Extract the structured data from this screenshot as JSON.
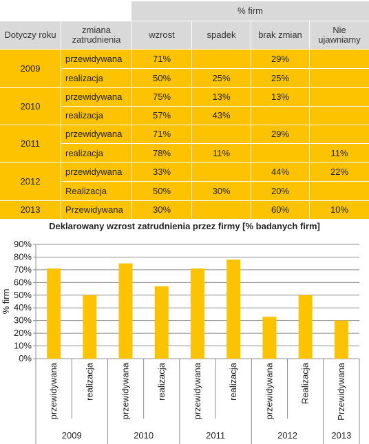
{
  "table": {
    "group_header": "% firm",
    "col_year": "Dotyczy roku",
    "col_change": "zmiana zatrudnienia",
    "col_growth": "wzrost",
    "col_decline": "spadek",
    "col_nochange": "brak zmian",
    "col_undisclosed": "Nie ujawniamy",
    "years": [
      {
        "year": "2009",
        "rows": [
          {
            "type": "przewidywana",
            "wzrost": "71%",
            "spadek": "",
            "brak": "29%",
            "nie": ""
          },
          {
            "type": "realizacja",
            "wzrost": "50%",
            "spadek": "25%",
            "brak": "25%",
            "nie": ""
          }
        ]
      },
      {
        "year": "2010",
        "rows": [
          {
            "type": "przewidywana",
            "wzrost": "75%",
            "spadek": "13%",
            "brak": "13%",
            "nie": ""
          },
          {
            "type": "realizacja",
            "wzrost": "57%",
            "spadek": "43%",
            "brak": "",
            "nie": ""
          }
        ]
      },
      {
        "year": "2011",
        "rows": [
          {
            "type": "przewidywana",
            "wzrost": "71%",
            "spadek": "",
            "brak": "29%",
            "nie": ""
          },
          {
            "type": "realizacja",
            "wzrost": "78%",
            "spadek": "11%",
            "brak": "",
            "nie": "11%"
          }
        ]
      },
      {
        "year": "2012",
        "rows": [
          {
            "type": "przewidywana",
            "wzrost": "33%",
            "spadek": "",
            "brak": "44%",
            "nie": "22%"
          },
          {
            "type": "Realizacja",
            "wzrost": "50%",
            "spadek": "30%",
            "brak": "20%",
            "nie": ""
          }
        ]
      },
      {
        "year": "2013",
        "rows": [
          {
            "type": "Przewidywana",
            "wzrost": "30%",
            "spadek": "",
            "brak": "60%",
            "nie": "10%"
          }
        ]
      }
    ]
  },
  "chart_data": {
    "type": "bar",
    "title": "Deklarowany  wzrost  zatrudnienia  przez  firmy  [% badanych firm]",
    "ylabel": "% firm",
    "xlabel": "",
    "ylim": [
      0,
      90
    ],
    "yticks": [
      "0%",
      "10%",
      "20%",
      "30%",
      "40%",
      "50%",
      "60%",
      "70%",
      "80%",
      "90%"
    ],
    "grid": true,
    "bar_color": "#fdc300",
    "categories": [
      "przewidywana",
      "realizacja",
      "przewidywana",
      "realizacja",
      "przewidywana",
      "realizacja",
      "przewidywana",
      "Realizacja",
      "Przewidywana"
    ],
    "groups": [
      {
        "label": "2009",
        "count": 2
      },
      {
        "label": "2010",
        "count": 2
      },
      {
        "label": "2011",
        "count": 2
      },
      {
        "label": "2012",
        "count": 2
      },
      {
        "label": "2013",
        "count": 1
      }
    ],
    "values": [
      71,
      50,
      75,
      57,
      71,
      78,
      33,
      50,
      30
    ]
  }
}
